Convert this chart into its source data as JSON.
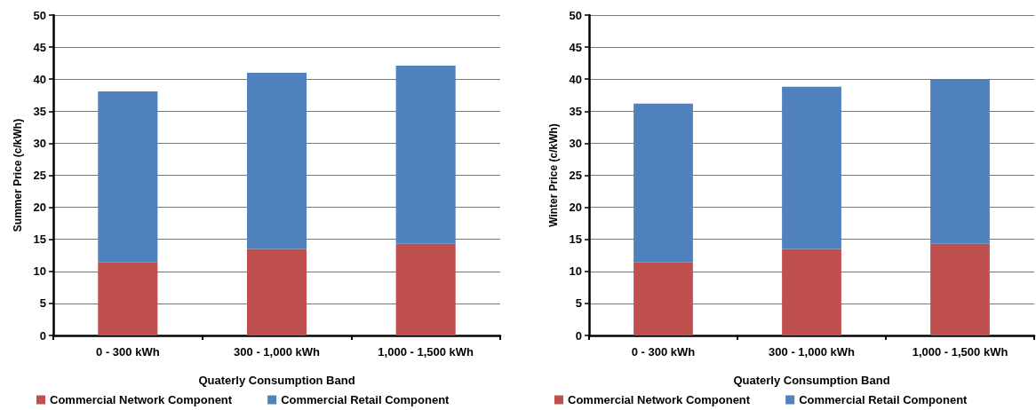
{
  "chart_data": [
    {
      "type": "bar",
      "stacked": true,
      "xlabel": "Quaterly Consumption Band",
      "ylabel": "Summer Price (c/kWh)",
      "categories": [
        "0 - 300 kWh",
        "300 - 1,000 kWh",
        "1,000 - 1,500 kWh"
      ],
      "series": [
        {
          "name": "Commercial Network Component",
          "color": "#c0504d",
          "values": [
            11.4,
            13.5,
            14.3
          ]
        },
        {
          "name": "Commercial Retail Component",
          "color": "#4f81bd",
          "values": [
            26.7,
            27.5,
            27.8
          ]
        }
      ],
      "ylim": [
        0,
        50
      ],
      "yticks": [
        0,
        5,
        10,
        15,
        20,
        25,
        30,
        35,
        40,
        45,
        50
      ],
      "grid": "y",
      "legend": "bottom left"
    },
    {
      "type": "bar",
      "stacked": true,
      "xlabel": "Quaterly Consumption Band",
      "ylabel": "Winter Price (c/kWh)",
      "categories": [
        "0 - 300 kWh",
        "300 - 1,000 kWh",
        "1,000 - 1,500 kWh"
      ],
      "series": [
        {
          "name": "Commercial Network Component",
          "color": "#c0504d",
          "values": [
            11.4,
            13.5,
            14.3
          ]
        },
        {
          "name": "Commercial Retail Component",
          "color": "#4f81bd",
          "values": [
            24.8,
            25.3,
            25.6
          ]
        }
      ],
      "ylim": [
        0,
        50
      ],
      "yticks": [
        0,
        5,
        10,
        15,
        20,
        25,
        30,
        35,
        40,
        45,
        50
      ],
      "grid": "y",
      "legend": "bottom left"
    }
  ]
}
